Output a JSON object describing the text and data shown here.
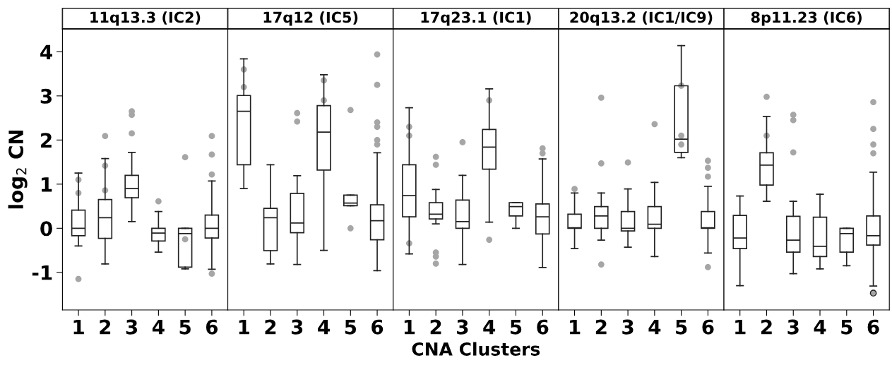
{
  "chart_data": [
    {
      "type": "box",
      "title": "11q13.3 (IC2)",
      "ylabel": "log$_{2}$ CN",
      "categories": [
        "1",
        "2",
        "3",
        "4",
        "5",
        "6"
      ],
      "ylim": [
        -1.85,
        4.52
      ],
      "yticks": [
        {
          "value": -1,
          "label": "-1"
        },
        0,
        1,
        2,
        3,
        4
      ],
      "series": [
        {
          "type": "scatter",
          "color": "#a6a6a6",
          "marker": "circle",
          "x": [
            "1",
            "1",
            "1",
            "2",
            "2",
            "2",
            "3",
            "3",
            "3",
            "4",
            "5",
            "5",
            "6",
            "6",
            "6",
            "6"
          ],
          "values": [
            -1.15,
            1.1,
            0.8,
            2.09,
            1.42,
            0.86,
            2.65,
            2.57,
            2.15,
            0.61,
            1.61,
            -0.25,
            2.09,
            1.67,
            1.22,
            -1.03
          ]
        },
        {
          "type": "box",
          "color": "#222222",
          "boxes": [
            {
              "low": -0.4,
              "q1": -0.17,
              "median": 0,
              "q3": 0.41,
              "high": 1.25
            },
            {
              "low": -0.81,
              "q1": -0.23,
              "median": 0.24,
              "q3": 0.65,
              "high": 1.58
            },
            {
              "low": 0.15,
              "q1": 0.69,
              "median": 0.9,
              "q3": 1.2,
              "high": 1.72
            },
            {
              "low": -0.54,
              "q1": -0.29,
              "median": -0.11,
              "q3": 0,
              "high": 0.38
            },
            {
              "low": -0.92,
              "q1": -0.88,
              "median": -0.12,
              "q3": 0,
              "high": 0
            },
            {
              "low": -0.93,
              "q1": -0.22,
              "median": 0,
              "q3": 0.3,
              "high": 1.07
            }
          ]
        }
      ]
    },
    {
      "type": "box",
      "title": "17q12 (IC5)",
      "categories": [
        "1",
        "2",
        "3",
        "4",
        "5",
        "6"
      ],
      "ylim": [
        -1.85,
        4.52
      ],
      "tick_labels": "x",
      "series": [
        {
          "type": "scatter",
          "color": "#a6a6a6",
          "marker": "circle",
          "x": [
            "1",
            "1",
            "3",
            "3",
            "4",
            "4",
            "5",
            "5",
            "6",
            "6",
            "6",
            "6",
            "6",
            "6"
          ],
          "values": [
            3.6,
            3.2,
            2.61,
            2.42,
            3.35,
            2.9,
            2.68,
            0,
            3.94,
            3.25,
            2.4,
            2.3,
            2.0,
            1.9
          ]
        },
        {
          "type": "box",
          "color": "#222222",
          "boxes": [
            {
              "low": 0.9,
              "q1": 1.44,
              "median": 2.65,
              "q3": 3.01,
              "high": 3.84
            },
            {
              "low": -0.81,
              "q1": -0.51,
              "median": 0.24,
              "q3": 0.45,
              "high": 1.44
            },
            {
              "low": -0.82,
              "q1": -0.1,
              "median": 0.12,
              "q3": 0.79,
              "high": 1.19
            },
            {
              "low": -0.5,
              "q1": 1.32,
              "median": 2.18,
              "q3": 2.78,
              "high": 3.48
            },
            {
              "low": 0.51,
              "q1": 0.51,
              "median": 0.57,
              "q3": 0.75,
              "high": 0.75
            },
            {
              "low": -0.96,
              "q1": -0.26,
              "median": 0.17,
              "q3": 0.53,
              "high": 1.71
            }
          ]
        }
      ]
    },
    {
      "type": "box",
      "title": "17q23.1 (IC1)",
      "xlabel": "CNA Clusters",
      "categories": [
        "1",
        "2",
        "3",
        "4",
        "5",
        "6"
      ],
      "ylim": [
        -1.85,
        4.52
      ],
      "tick_labels": "x",
      "series": [
        {
          "type": "scatter",
          "color": "#a6a6a6",
          "marker": "circle",
          "x": [
            "1",
            "1",
            "1",
            "2",
            "2",
            "2",
            "2",
            "2",
            "3",
            "4",
            "4",
            "6",
            "6"
          ],
          "values": [
            2.3,
            2.1,
            -0.34,
            1.62,
            1.44,
            -0.55,
            -0.64,
            -0.8,
            1.95,
            -0.26,
            2.9,
            1.81,
            1.7
          ]
        },
        {
          "type": "box",
          "color": "#222222",
          "boxes": [
            {
              "low": -0.58,
              "q1": 0.26,
              "median": 0.74,
              "q3": 1.44,
              "high": 2.73
            },
            {
              "low": 0.1,
              "q1": 0.21,
              "median": 0.32,
              "q3": 0.58,
              "high": 0.88
            },
            {
              "low": -0.82,
              "q1": 0,
              "median": 0.15,
              "q3": 0.64,
              "high": 1.2
            },
            {
              "low": 0.14,
              "q1": 1.34,
              "median": 1.84,
              "q3": 2.24,
              "high": 3.16
            },
            {
              "low": 0,
              "q1": 0.28,
              "median": 0.49,
              "q3": 0.58,
              "high": 0.58
            },
            {
              "low": -0.89,
              "q1": -0.13,
              "median": 0.26,
              "q3": 0.55,
              "high": 1.57
            }
          ]
        }
      ]
    },
    {
      "type": "box",
      "title": "20q13.2 (IC1/IC9)",
      "categories": [
        "1",
        "2",
        "3",
        "4",
        "5",
        "6"
      ],
      "ylim": [
        -1.85,
        4.52
      ],
      "tick_labels": "x",
      "series": [
        {
          "type": "scatter",
          "color": "#a6a6a6",
          "marker": "circle",
          "x": [
            "1",
            "2",
            "2",
            "2",
            "3",
            "4",
            "5",
            "5",
            "5",
            "6",
            "6",
            "6",
            "6"
          ],
          "values": [
            0.89,
            2.96,
            1.47,
            -0.82,
            1.49,
            2.36,
            3.23,
            2.1,
            1.9,
            1.53,
            1.37,
            1.17,
            -0.88
          ]
        },
        {
          "type": "box",
          "color": "#222222",
          "boxes": [
            {
              "low": -0.46,
              "q1": 0,
              "median": 0.01,
              "q3": 0.32,
              "high": 0.8
            },
            {
              "low": -0.27,
              "q1": 0,
              "median": 0.28,
              "q3": 0.49,
              "high": 0.8
            },
            {
              "low": -0.43,
              "q1": -0.06,
              "median": 0,
              "q3": 0.38,
              "high": 0.89
            },
            {
              "low": -0.64,
              "q1": 0,
              "median": 0.09,
              "q3": 0.49,
              "high": 1.04
            },
            {
              "low": 1.6,
              "q1": 1.72,
              "median": 2.02,
              "q3": 3.23,
              "high": 4.14
            },
            {
              "low": -0.56,
              "q1": 0,
              "median": 0.01,
              "q3": 0.38,
              "high": 0.95
            }
          ]
        }
      ]
    },
    {
      "type": "box",
      "title": "8p11.23 (IC6)",
      "categories": [
        "1",
        "2",
        "3",
        "4",
        "5",
        "6"
      ],
      "ylim": [
        -1.85,
        4.52
      ],
      "tick_labels": "x",
      "series": [
        {
          "type": "scatter",
          "color": "#a6a6a6",
          "marker": "circle",
          "x": [
            "2",
            "2",
            "3",
            "3",
            "3",
            "6",
            "6",
            "6",
            "6"
          ],
          "values": [
            2.98,
            2.1,
            2.57,
            2.45,
            1.72,
            2.86,
            2.25,
            1.9,
            1.7
          ]
        },
        {
          "type": "box",
          "color": "#222222",
          "boxes": [
            {
              "low": -1.3,
              "q1": -0.46,
              "median": -0.22,
              "q3": 0.29,
              "high": 0.73
            },
            {
              "low": 0.61,
              "q1": 0.98,
              "median": 1.43,
              "q3": 1.71,
              "high": 2.53
            },
            {
              "low": -1.03,
              "q1": -0.54,
              "median": -0.27,
              "q3": 0.27,
              "high": 0.61
            },
            {
              "low": -0.92,
              "q1": -0.64,
              "median": -0.41,
              "q3": 0.25,
              "high": 0.77
            },
            {
              "low": -0.85,
              "q1": -0.54,
              "median": -0.12,
              "q3": 0,
              "high": 0
            },
            {
              "low": -1.31,
              "q1": -0.38,
              "median": -0.17,
              "q3": 0.28,
              "high": 1.27,
              "outliers": [
                -1.47
              ]
            }
          ]
        }
      ]
    }
  ]
}
